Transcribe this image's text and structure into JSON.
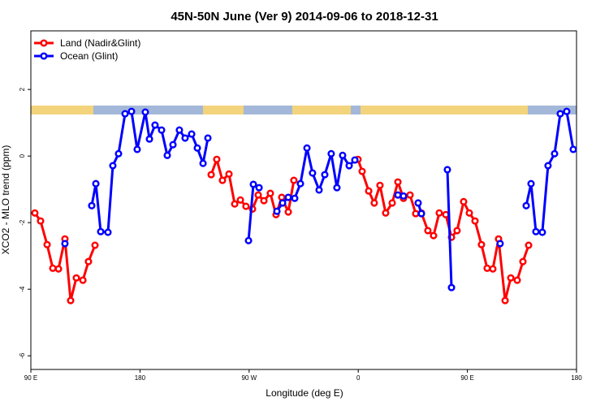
{
  "chart_data": {
    "type": "line",
    "title": "45N-50N June (Ver 9)   2014-09-06 to 2018-12-31",
    "x_label": "Longitude (deg E)",
    "y_label": "XCO2 - MLO trend (ppm)",
    "xlim": [
      90,
      540
    ],
    "ylim": [
      -6.41,
      3.76
    ],
    "xticks": [
      {
        "value": 90,
        "label": "90 E"
      },
      180,
      {
        "value": 270,
        "label": "90 W"
      },
      {
        "value": 360,
        "label": "0"
      },
      {
        "value": 450,
        "label": "90 E"
      },
      {
        "value": 540,
        "label": "180"
      }
    ],
    "yticks": [
      -6,
      -4,
      -2,
      0,
      2
    ],
    "grid": false,
    "legend": "top-left",
    "series": [
      {
        "name": "Land (Nadir&Glint)",
        "color": "#ff0000",
        "x": [
          93.3,
          98.0,
          103.4,
          108.1,
          112.8,
          118.1,
          122.8,
          127.5,
          132.9,
          137.5,
          142.9,
          null,
          238.7,
          243.3,
          248.0,
          253.4,
          258.1,
          262.8,
          267.4,
          272.8,
          277.5,
          282.2,
          287.5,
          292.2,
          296.9,
          302.3,
          306.9,
          null,
          359.8,
          363.2,
          368.6,
          373.2,
          377.9,
          382.6,
          388.0,
          392.7,
          397.3,
          402.7,
          407.4,
          412.1,
          417.4,
          422.1,
          426.8,
          432.2,
          436.9,
          441.5,
          446.9,
          451.6,
          456.3,
          461.6,
          466.3,
          471.0,
          475.7,
          481.1,
          485.8,
          491.1,
          495.8,
          500.5
        ],
        "values": [
          -1.71,
          -1.95,
          -2.66,
          -3.37,
          -3.39,
          -2.49,
          -4.34,
          -3.66,
          -3.73,
          -3.17,
          -2.68,
          null,
          -0.56,
          -0.1,
          -0.73,
          -0.54,
          -1.44,
          -1.32,
          -1.51,
          -1.59,
          -1.17,
          -1.34,
          -1.12,
          -1.76,
          -1.24,
          -1.68,
          -0.73,
          null,
          -0.1,
          -0.46,
          -1.05,
          -1.41,
          -0.88,
          -1.71,
          -1.41,
          -0.78,
          -1.27,
          -1.17,
          -1.73,
          -1.71,
          -2.24,
          -2.39,
          -1.71,
          -1.76,
          -2.44,
          -2.24,
          -1.37,
          -1.71,
          -1.95,
          -2.66,
          -3.37,
          -3.39,
          -2.49,
          -4.34,
          -3.66,
          -3.73,
          -3.17,
          -2.68
        ]
      },
      {
        "name": "Ocean (Glint)",
        "color": "#0000ff",
        "x": [
          118.1,
          null,
          140.2,
          143.6,
          147.6,
          153.6,
          157.6,
          162.3,
          167.7,
          173.0,
          177.7,
          184.4,
          187.8,
          192.4,
          197.8,
          202.5,
          207.2,
          212.5,
          217.2,
          222.6,
          227.3,
          232.0,
          236.0,
          null,
          269.5,
          273.5,
          278.2,
          null,
          292.9,
          297.6,
          302.3,
          307.6,
          312.3,
          317.7,
          322.3,
          327.7,
          332.4,
          337.7,
          342.4,
          347.1,
          352.5,
          357.2,
          null,
          392.7,
          397.3,
          null,
          409.4,
          412.1,
          null,
          433.5,
          436.9,
          null,
          477.0,
          null,
          498.5,
          502.5,
          506.5,
          511.8,
          516.5,
          521.9,
          526.6,
          531.9,
          537.3
        ],
        "values": [
          -2.63,
          null,
          -1.49,
          -0.83,
          -2.27,
          -2.29,
          -0.29,
          0.07,
          1.27,
          1.34,
          0.2,
          1.32,
          0.51,
          0.93,
          0.78,
          0.02,
          0.34,
          0.78,
          0.54,
          0.66,
          0.24,
          -0.22,
          0.54,
          null,
          -2.54,
          -0.85,
          -0.95,
          null,
          -1.66,
          -1.41,
          -1.24,
          -1.27,
          -0.83,
          0.24,
          -0.51,
          -1.02,
          -0.56,
          0.07,
          -0.95,
          0.02,
          -0.29,
          -0.12,
          null,
          -1.17,
          -1.2,
          null,
          -1.41,
          -1.73,
          null,
          -0.41,
          -3.95,
          null,
          -2.63,
          null,
          -1.49,
          -0.83,
          -2.27,
          -2.29,
          -0.29,
          0.07,
          1.27,
          1.34,
          0.2
        ]
      }
    ]
  }
}
